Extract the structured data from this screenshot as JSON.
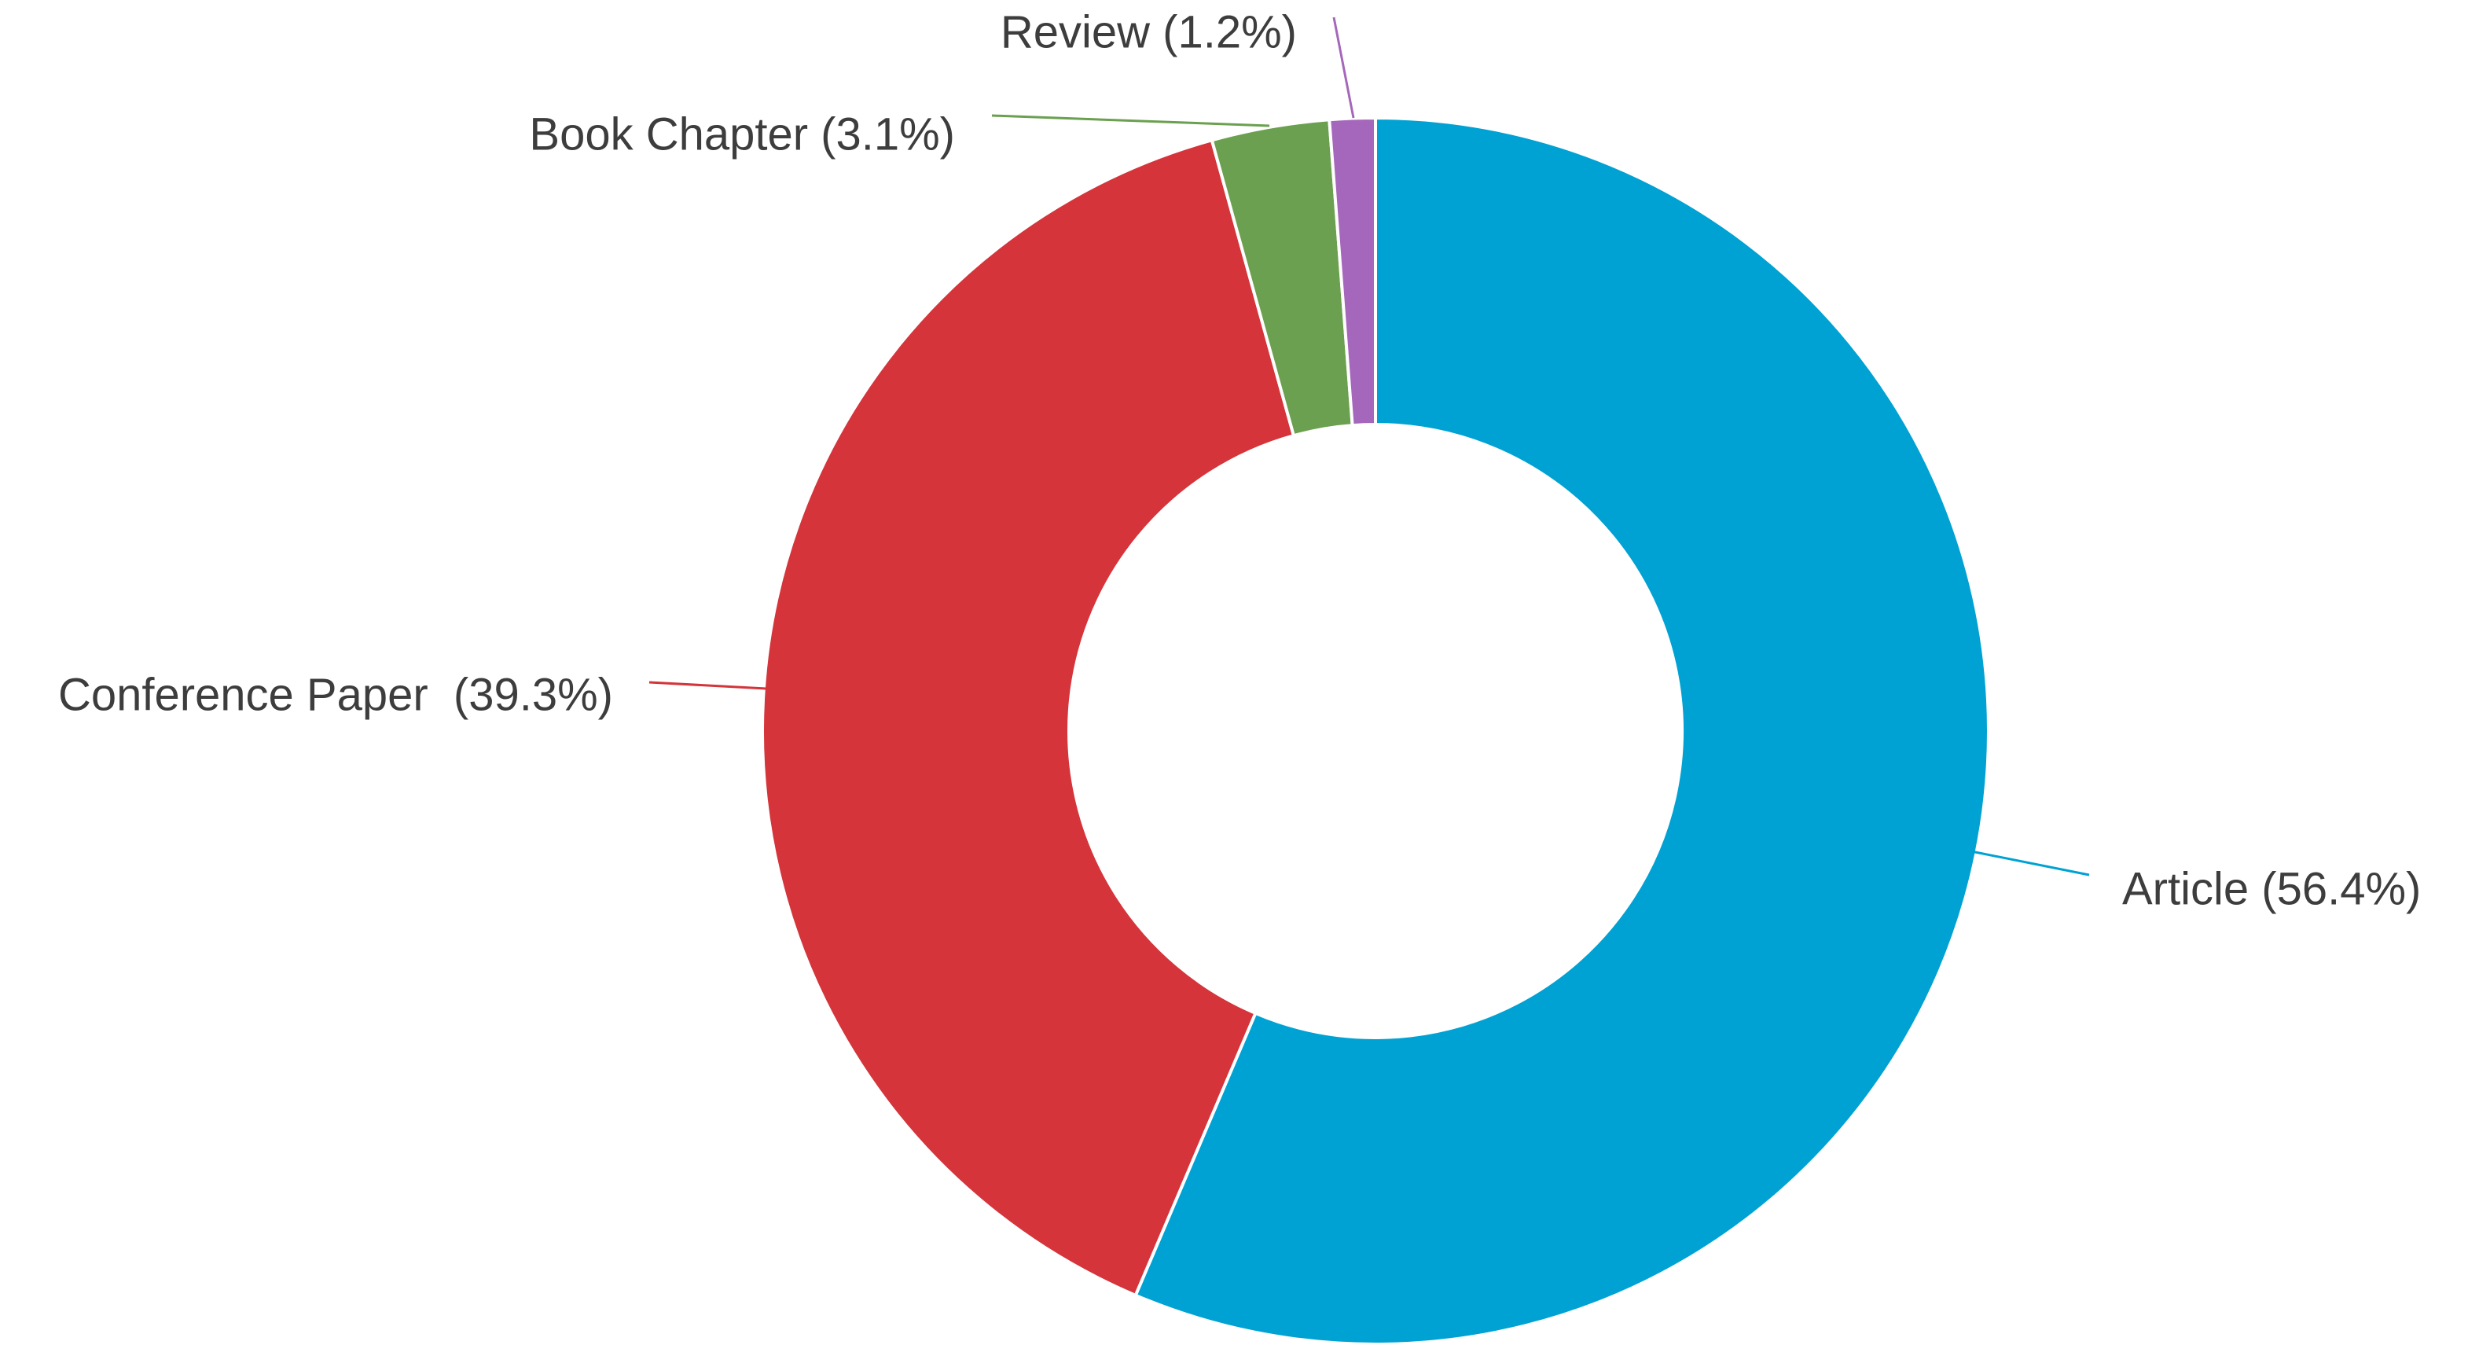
{
  "chart_data": {
    "type": "pie",
    "donut": true,
    "start": "12 o'clock",
    "direction": "clockwise",
    "legend": "none",
    "slices": [
      {
        "name": "Article",
        "value": 56.4,
        "label": "Article (56.4%)",
        "color": "#00a2d3",
        "label_side": "right"
      },
      {
        "name": "Conference Paper",
        "value": 39.3,
        "label": "Conference Paper  (39.3%)",
        "color": "#d4343a",
        "label_side": "left"
      },
      {
        "name": "Book Chapter",
        "value": 3.1,
        "label": "Book Chapter (3.1%)",
        "color": "#6aa04f",
        "label_side": "left"
      },
      {
        "name": "Review",
        "value": 1.2,
        "label": "Review (1.2%)",
        "color": "#a567bb",
        "label_side": "left"
      }
    ]
  }
}
